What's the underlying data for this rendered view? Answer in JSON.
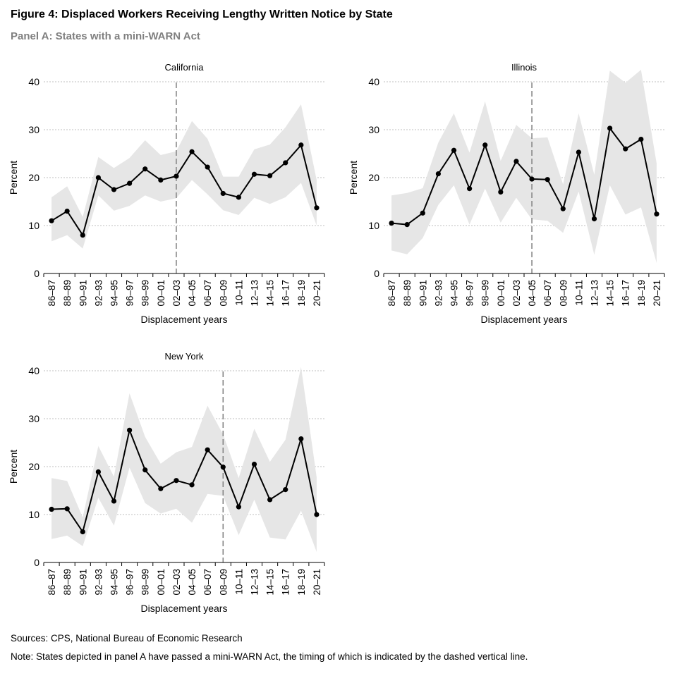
{
  "figure_title": "Figure 4: Displaced Workers Receiving Lengthy Written Notice by State",
  "panel_title": "Panel A: States with a mini-WARN Act",
  "source_text": "Sources: CPS, National Bureau of Economic Research",
  "note_text": "Note: States depicted in panel A have passed a mini-WARN Act, the timing of which is indicated by the dashed vertical line.",
  "colors": {
    "line": "#000000",
    "band": "#e6e6e6",
    "grid": "#bfbfbf",
    "vline": "#808080"
  },
  "chart_data": [
    {
      "type": "line",
      "title": "California",
      "xlabel": "Displacement years",
      "ylabel": "Percent",
      "ylim": [
        0,
        40
      ],
      "yticks": [
        0,
        10,
        20,
        30,
        40
      ],
      "grid": true,
      "categories": [
        "86–87",
        "88–89",
        "90–91",
        "92–93",
        "94–95",
        "96–97",
        "98–99",
        "00–01",
        "02–03",
        "04–05",
        "06–07",
        "08–09",
        "10–11",
        "12–13",
        "14–15",
        "16–17",
        "18–19",
        "20–21"
      ],
      "values": [
        11.0,
        13.0,
        8.0,
        20.0,
        17.5,
        18.8,
        21.8,
        19.5,
        20.3,
        25.4,
        22.2,
        16.7,
        15.9,
        20.7,
        20.4,
        23.1,
        26.8,
        13.7
      ],
      "upper": [
        15.9,
        18.2,
        11.8,
        24.3,
        22.0,
        24.1,
        27.8,
        24.7,
        25.5,
        31.8,
        28.1,
        20.2,
        20.2,
        25.9,
        26.9,
        30.5,
        35.3,
        19.5
      ],
      "lower": [
        6.7,
        8.0,
        5.2,
        16.3,
        13.1,
        14.1,
        16.3,
        15.0,
        15.7,
        19.5,
        16.5,
        13.2,
        12.2,
        15.8,
        14.5,
        15.9,
        18.9,
        10.0
      ],
      "policy_year": "02–03"
    },
    {
      "type": "line",
      "title": "Illinois",
      "xlabel": "Displacement years",
      "ylabel": "Percent",
      "ylim": [
        0,
        40
      ],
      "yticks": [
        0,
        10,
        20,
        30,
        40
      ],
      "grid": true,
      "categories": [
        "86–87",
        "88–89",
        "90–91",
        "92–93",
        "94–95",
        "96–97",
        "98–99",
        "00–01",
        "02–03",
        "04–05",
        "06–07",
        "08–09",
        "10–11",
        "12–13",
        "14–15",
        "16–17",
        "18–19",
        "20–21"
      ],
      "values": [
        10.5,
        10.2,
        12.6,
        20.8,
        25.7,
        17.7,
        26.8,
        17.0,
        23.4,
        19.7,
        19.6,
        13.5,
        25.3,
        11.4,
        30.3,
        26.0,
        28.0,
        12.4
      ],
      "upper": [
        16.3,
        16.8,
        17.8,
        27.3,
        33.4,
        25.2,
        35.9,
        23.5,
        31.0,
        28.2,
        28.4,
        18.6,
        33.4,
        20.6,
        42.3,
        39.8,
        42.5,
        23.0
      ],
      "lower": [
        4.8,
        4.0,
        7.4,
        14.3,
        18.4,
        10.2,
        17.7,
        10.6,
        15.8,
        11.3,
        11.0,
        8.5,
        17.1,
        3.9,
        18.4,
        12.3,
        13.8,
        2.2
      ],
      "policy_year": "04–05"
    },
    {
      "type": "line",
      "title": "New York",
      "xlabel": "Displacement years",
      "ylabel": "Percent",
      "ylim": [
        0,
        40
      ],
      "yticks": [
        0,
        10,
        20,
        30,
        40
      ],
      "grid": true,
      "categories": [
        "86–87",
        "88–89",
        "90–91",
        "92–93",
        "94–95",
        "96–97",
        "98–99",
        "00–01",
        "02–03",
        "04–05",
        "06–07",
        "08–09",
        "10–11",
        "12–13",
        "14–15",
        "16–17",
        "18–19",
        "20–21"
      ],
      "values": [
        11.1,
        11.2,
        6.4,
        18.9,
        12.8,
        27.6,
        19.3,
        15.4,
        17.1,
        16.2,
        23.5,
        19.9,
        11.6,
        20.5,
        13.1,
        15.2,
        25.8,
        10.0
      ],
      "upper": [
        17.6,
        17.0,
        9.4,
        24.3,
        17.9,
        35.3,
        26.2,
        20.6,
        23.0,
        24.1,
        32.7,
        26.7,
        17.6,
        27.9,
        21.0,
        25.6,
        40.8,
        17.8
      ],
      "lower": [
        4.9,
        5.6,
        3.4,
        13.5,
        7.7,
        19.8,
        12.4,
        10.2,
        11.2,
        8.3,
        14.3,
        13.9,
        5.7,
        13.1,
        5.2,
        4.8,
        10.8,
        2.2
      ],
      "policy_year": "08–09"
    }
  ]
}
